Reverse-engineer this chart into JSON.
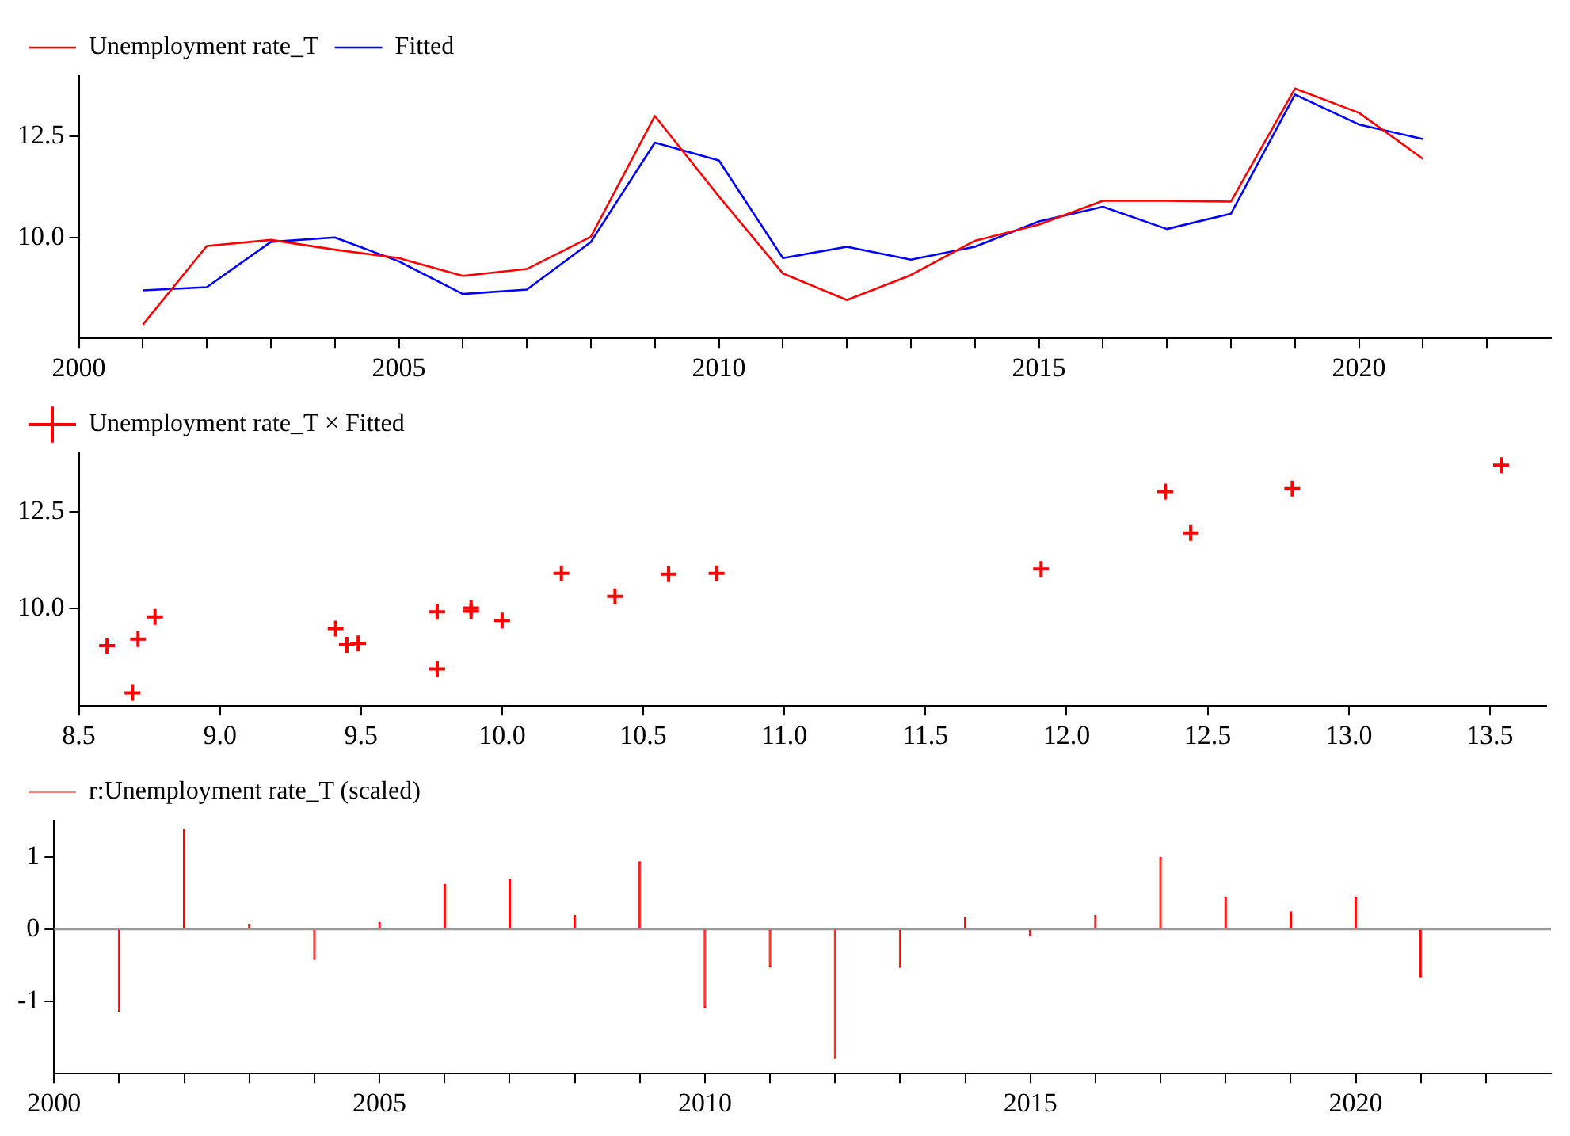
{
  "chart_data": [
    {
      "type": "line",
      "x": [
        2001,
        2002,
        2003,
        2004,
        2005,
        2006,
        2007,
        2008,
        2009,
        2010,
        2011,
        2012,
        2013,
        2014,
        2015,
        2016,
        2017,
        2018,
        2019,
        2020,
        2021
      ],
      "series": [
        {
          "name": "Unemployment rate_T",
          "color": "#ff0000",
          "values": [
            7.84,
            9.79,
            9.94,
            9.7,
            9.49,
            9.05,
            9.22,
            10.02,
            13.01,
            11.02,
            9.11,
            8.45,
            9.07,
            9.92,
            10.32,
            10.91,
            10.91,
            10.89,
            13.69,
            13.09,
            11.95
          ]
        },
        {
          "name": "Fitted",
          "color": "#0000ff",
          "values": [
            8.69,
            8.77,
            9.89,
            10.0,
            9.41,
            8.6,
            8.71,
            9.89,
            12.35,
            11.91,
            9.49,
            9.77,
            9.45,
            9.77,
            10.4,
            10.76,
            10.21,
            10.59,
            13.54,
            12.8,
            12.44
          ]
        }
      ],
      "xlim": [
        2000,
        2023
      ],
      "xticks": [
        2000,
        {
          "value": 2001,
          "label": null
        },
        {
          "value": 2002,
          "label": null
        },
        {
          "value": 2003,
          "label": null
        },
        {
          "value": 2004,
          "label": null
        },
        2005,
        {
          "value": 2006,
          "label": null
        },
        {
          "value": 2007,
          "label": null
        },
        {
          "value": 2008,
          "label": null
        },
        {
          "value": 2009,
          "label": null
        },
        2010,
        {
          "value": 2011,
          "label": null
        },
        {
          "value": 2012,
          "label": null
        },
        {
          "value": 2013,
          "label": null
        },
        {
          "value": 2014,
          "label": null
        },
        2015,
        {
          "value": 2016,
          "label": null
        },
        {
          "value": 2017,
          "label": null
        },
        {
          "value": 2018,
          "label": null
        },
        {
          "value": 2019,
          "label": null
        },
        2020,
        {
          "value": 2021,
          "label": null
        },
        {
          "value": 2022,
          "label": null
        }
      ],
      "ylim": [
        7.5,
        14
      ],
      "yticks": [
        {
          "value": 10,
          "label": "10.0"
        },
        12.5
      ],
      "legend": "top left",
      "marker": "none"
    },
    {
      "type": "scatter",
      "series": [
        {
          "name": "Unemployment rate_T × Fitted",
          "color": "#ff0000",
          "x": [
            8.69,
            8.77,
            9.89,
            10.0,
            9.41,
            8.6,
            8.71,
            9.89,
            12.35,
            11.91,
            9.49,
            9.77,
            9.45,
            9.77,
            10.4,
            10.76,
            10.21,
            10.59,
            13.54,
            12.8,
            12.44
          ],
          "values": [
            7.84,
            9.79,
            9.94,
            9.7,
            9.49,
            9.05,
            9.22,
            10.02,
            13.01,
            11.02,
            9.11,
            8.45,
            9.07,
            9.92,
            10.32,
            10.91,
            10.91,
            10.89,
            13.69,
            13.09,
            11.95
          ]
        }
      ],
      "xlim": [
        8.5,
        13.7
      ],
      "xticks": [
        8.5,
        {
          "value": 9,
          "label": "9.0"
        },
        9.5,
        {
          "value": 10,
          "label": "10.0"
        },
        10.5,
        {
          "value": 11,
          "label": "11.0"
        },
        11.5,
        {
          "value": 12,
          "label": "12.0"
        },
        12.5,
        {
          "value": 13,
          "label": "13.0"
        },
        13.5
      ],
      "ylim": [
        7.5,
        14
      ],
      "yticks": [
        {
          "value": 10,
          "label": "10.0"
        },
        12.5
      ],
      "legend": "top left",
      "marker": "cross"
    },
    {
      "type": "bar",
      "x": [
        2001,
        2002,
        2003,
        2004,
        2005,
        2006,
        2007,
        2008,
        2009,
        2010,
        2011,
        2012,
        2013,
        2014,
        2015,
        2016,
        2017,
        2018,
        2019,
        2020,
        2021
      ],
      "series": [
        {
          "name": "r:Unemployment rate_T (scaled)",
          "color": "#ff0000",
          "values": [
            -1.14,
            1.38,
            0.06,
            -0.42,
            0.09,
            0.62,
            0.69,
            0.19,
            0.93,
            -1.09,
            -0.52,
            -1.79,
            -0.53,
            0.16,
            -0.1,
            0.19,
            0.99,
            0.44,
            0.24,
            0.44,
            -0.66
          ]
        }
      ],
      "xlim": [
        2000,
        2023
      ],
      "xticks": [
        2000,
        {
          "value": 2001,
          "label": null
        },
        {
          "value": 2002,
          "label": null
        },
        {
          "value": 2003,
          "label": null
        },
        {
          "value": 2004,
          "label": null
        },
        2005,
        {
          "value": 2006,
          "label": null
        },
        {
          "value": 2007,
          "label": null
        },
        {
          "value": 2008,
          "label": null
        },
        {
          "value": 2009,
          "label": null
        },
        2010,
        {
          "value": 2011,
          "label": null
        },
        {
          "value": 2012,
          "label": null
        },
        {
          "value": 2013,
          "label": null
        },
        {
          "value": 2014,
          "label": null
        },
        2015,
        {
          "value": 2016,
          "label": null
        },
        {
          "value": 2017,
          "label": null
        },
        {
          "value": 2018,
          "label": null
        },
        {
          "value": 2019,
          "label": null
        },
        2020,
        {
          "value": 2021,
          "label": null
        },
        {
          "value": 2022,
          "label": null
        }
      ],
      "ylim": [
        -2,
        1.5
      ],
      "yticks": [
        -1,
        0,
        1
      ],
      "legend": "top left",
      "ref_lines": [
        {
          "axis": "y",
          "value": 0,
          "color": "#999999"
        }
      ]
    }
  ]
}
